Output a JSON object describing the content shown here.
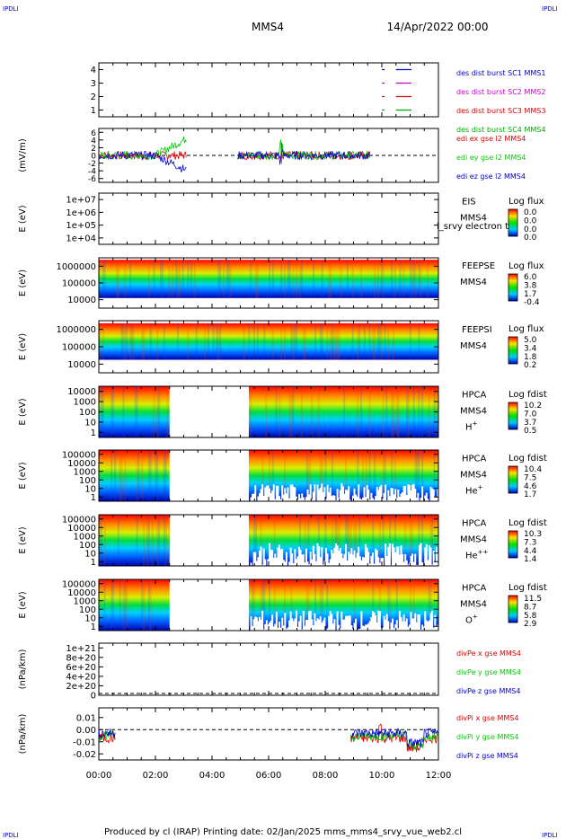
{
  "header": {
    "corner_tl": "IPDLI",
    "corner_tr": "IPDLI",
    "spacecraft": "MMS4",
    "date": "14/Apr/2022 00:00",
    "corner_bl": "IPDLI",
    "corner_br": "IPDLI"
  },
  "footer": {
    "text": "Produced by cl (IRAP)   Printing date: 02/Jan/2025   mms_mms4_srvy_vue_web2.cl"
  },
  "chart_data": [
    {
      "type": "line",
      "panel": "burst_availability",
      "yticks": [
        "1",
        "2",
        "3",
        "4"
      ],
      "ylim": [
        0.5,
        4.5
      ],
      "series": [
        {
          "name": "des dist burst SC1 MMS1",
          "color": "#0000cc",
          "y": 4,
          "segments": [
            [
              10.0,
              10.1
            ],
            [
              10.5,
              11.05
            ]
          ]
        },
        {
          "name": "des dist burst SC2 MMS2",
          "color": "#cc00cc",
          "y": 3,
          "segments": [
            [
              10.0,
              10.1
            ],
            [
              10.5,
              11.05
            ]
          ]
        },
        {
          "name": "des dist burst SC3 MMS3",
          "color": "#dd0000",
          "y": 2,
          "segments": [
            [
              10.0,
              10.1
            ],
            [
              10.5,
              11.05
            ]
          ]
        },
        {
          "name": "des dist burst SC4 MMS4",
          "color": "#00aa00",
          "y": 1,
          "segments": [
            [
              10.0,
              10.1
            ],
            [
              10.5,
              11.05
            ]
          ]
        }
      ]
    },
    {
      "type": "line",
      "panel": "edi_e_field",
      "ylabel": "(mV/m)",
      "yticks": [
        "-6",
        "-4",
        "-2",
        "0",
        "2",
        "4",
        "6"
      ],
      "ylim": [
        -7,
        7
      ],
      "series": [
        {
          "name": "edi ex gse l2 MMS4",
          "color": "#dd0000"
        },
        {
          "name": "edi ey gse l2 MMS4",
          "color": "#00cc00"
        },
        {
          "name": "edi ez gse l2 MMS4",
          "color": "#0000cc"
        }
      ]
    },
    {
      "type": "heatmap",
      "panel": "EIS",
      "ylabel": "E (eV)",
      "yticks": [
        "1e+04",
        "1e+05",
        "1e+06",
        "1e+07"
      ],
      "instrument": "EIS",
      "overlay_text": "l_srvy electron to",
      "spacecraft": "MMS4",
      "colorbar_title": "Log flux",
      "colorbar_ticks": [
        "0.0",
        "0.0",
        "0.0",
        "0.0"
      ]
    },
    {
      "type": "heatmap",
      "panel": "FEEPSE",
      "ylabel": "E (eV)",
      "yticks": [
        "10000",
        "100000",
        "1000000"
      ],
      "instrument": "FEEPSE",
      "spacecraft": "MMS4",
      "colorbar_title": "Log flux",
      "colorbar_ticks": [
        "6.0",
        "3.8",
        "1.7",
        "-0.4"
      ]
    },
    {
      "type": "heatmap",
      "panel": "FEEPSI",
      "ylabel": "E (eV)",
      "yticks": [
        "10000",
        "100000",
        "1000000"
      ],
      "instrument": "FEEPSI",
      "spacecraft": "MMS4",
      "colorbar_title": "Log flux",
      "colorbar_ticks": [
        "5.0",
        "3.4",
        "1.8",
        "0.2"
      ]
    },
    {
      "type": "heatmap",
      "panel": "HPCA_H+",
      "ylabel": "E (eV)",
      "yticks": [
        "1",
        "10",
        "100",
        "1000",
        "10000"
      ],
      "instrument": "HPCA",
      "spacecraft": "MMS4",
      "species": "H",
      "species_sup": "+",
      "colorbar_title": "Log fdist",
      "colorbar_ticks": [
        "10.2",
        "7.0",
        "3.7",
        "0.5"
      ],
      "gap": [
        2.5,
        5.3
      ]
    },
    {
      "type": "heatmap",
      "panel": "HPCA_He+",
      "ylabel": "E (eV)",
      "yticks": [
        "1",
        "10",
        "100",
        "1000",
        "10000",
        "100000"
      ],
      "instrument": "HPCA",
      "spacecraft": "MMS4",
      "species": "He",
      "species_sup": "+",
      "colorbar_title": "Log fdist",
      "colorbar_ticks": [
        "10.4",
        "7.5",
        "4.6",
        "1.7"
      ],
      "gap": [
        2.5,
        5.3
      ]
    },
    {
      "type": "heatmap",
      "panel": "HPCA_He++",
      "ylabel": "E (eV)",
      "yticks": [
        "1",
        "10",
        "100",
        "1000",
        "10000",
        "100000"
      ],
      "instrument": "HPCA",
      "spacecraft": "MMS4",
      "species": "He",
      "species_sup": "++",
      "colorbar_title": "Log fdist",
      "colorbar_ticks": [
        "10.3",
        "7.3",
        "4.4",
        "1.4"
      ],
      "gap": [
        2.5,
        5.3
      ]
    },
    {
      "type": "heatmap",
      "panel": "HPCA_O+",
      "ylabel": "E (eV)",
      "yticks": [
        "1",
        "10",
        "100",
        "1000",
        "10000",
        "100000"
      ],
      "instrument": "HPCA",
      "spacecraft": "MMS4",
      "species": "O",
      "species_sup": "+",
      "colorbar_title": "Log fdist",
      "colorbar_ticks": [
        "11.5",
        "8.7",
        "5.8",
        "2.9"
      ],
      "gap": [
        2.5,
        5.3
      ]
    },
    {
      "type": "line",
      "panel": "divPe",
      "ylabel": "(nPa/km)",
      "yticks": [
        "0",
        "2e+20",
        "4e+20",
        "6e+20",
        "8e+20",
        "1e+21"
      ],
      "ylim": [
        0,
        1.1e+21
      ],
      "series": [
        {
          "name": "divPe x gse MMS4",
          "color": "#dd0000"
        },
        {
          "name": "divPe y gse MMS4",
          "color": "#00cc00"
        },
        {
          "name": "divPe z gse MMS4",
          "color": "#0000cc"
        }
      ]
    },
    {
      "type": "line",
      "panel": "divPi",
      "ylabel": "(nPa/km)",
      "yticks": [
        "-0.02",
        "-0.01",
        "0.00",
        "0.01"
      ],
      "ylim": [
        -0.025,
        0.018
      ],
      "series": [
        {
          "name": "divPi x gse MMS4",
          "color": "#dd0000"
        },
        {
          "name": "divPi y gse MMS4",
          "color": "#00cc00"
        },
        {
          "name": "divPi z gse MMS4",
          "color": "#0000cc"
        }
      ]
    }
  ],
  "xaxis": {
    "ticks": [
      "00:00",
      "02:00",
      "04:00",
      "06:00",
      "08:00",
      "10:00",
      "12:00"
    ],
    "range_hours": [
      0,
      12
    ]
  }
}
